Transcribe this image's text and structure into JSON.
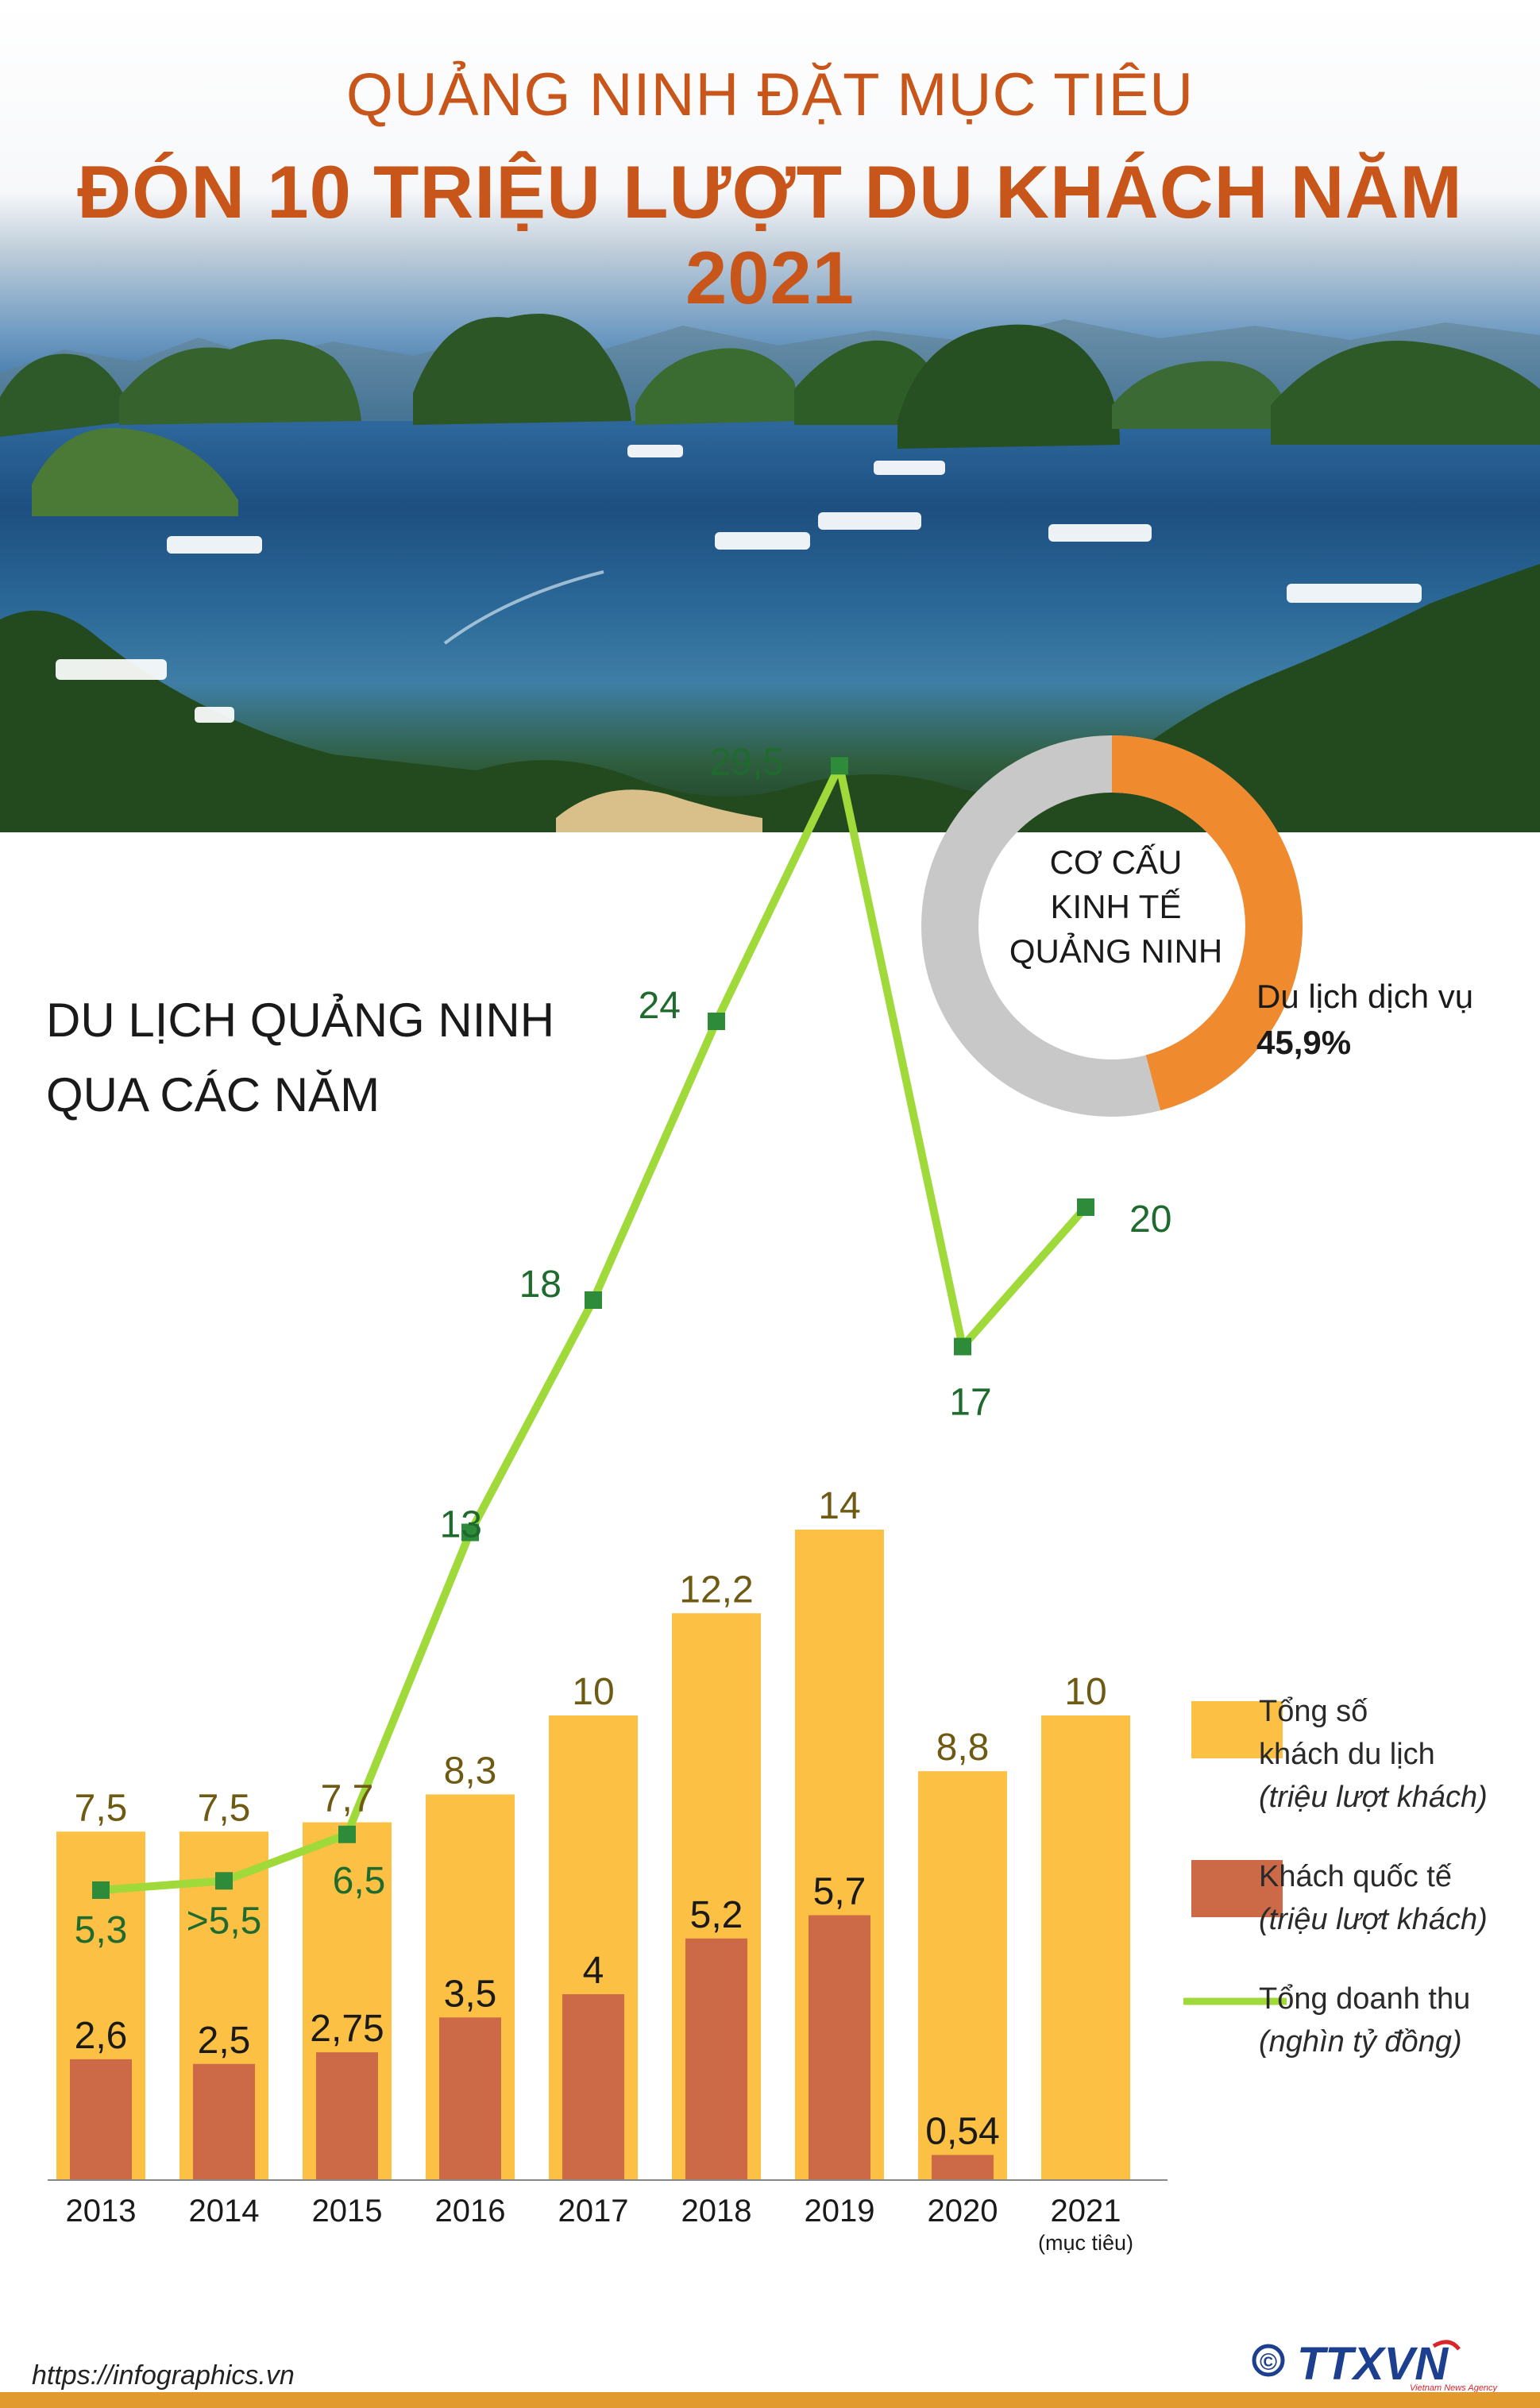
{
  "header": {
    "title_line1": "QUẢNG NINH ĐẶT MỤC TIÊU",
    "title_line2": "ĐÓN 10 TRIỆU LƯỢT DU KHÁCH NĂM 2021"
  },
  "section_title": {
    "line1": "DU LỊCH QUẢNG NINH",
    "line2": "QUA CÁC NĂM"
  },
  "donut": {
    "center_line1": "CƠ CẤU",
    "center_line2": "KINH TẾ",
    "center_line3": "QUẢNG NINH",
    "segment_label": "Du lịch dịch vụ",
    "segment_value": "45,9%",
    "percent": 45.9,
    "colors": {
      "segment": "#f08a2f",
      "rest": "#c8c8c8"
    }
  },
  "legend": {
    "total_line1": "Tổng số",
    "total_line2": "khách du lịch",
    "total_unit": "(triệu lượt khách)",
    "intl_line1": "Khách quốc tế",
    "intl_unit": "(triệu lượt khách)",
    "revenue_line1": "Tổng doanh thu",
    "revenue_unit": "(nghìn tỷ đồng)"
  },
  "chart_data": {
    "type": "bar",
    "categories": [
      "2013",
      "2014",
      "2015",
      "2016",
      "2017",
      "2018",
      "2019",
      "2020",
      "2021"
    ],
    "category_note": {
      "2021": "(mục tiêu)"
    },
    "series": [
      {
        "name": "Tổng số khách du lịch",
        "type": "bar",
        "values": [
          7.5,
          7.5,
          7.7,
          8.3,
          10,
          12.2,
          14,
          8.8,
          10
        ],
        "labels": [
          "7,5",
          "7,5",
          "7,7",
          "8,3",
          "10",
          "12,2",
          "14",
          "8,8",
          "10"
        ],
        "color": "#fbc044"
      },
      {
        "name": "Khách quốc tế",
        "type": "bar",
        "values": [
          2.6,
          2.5,
          2.75,
          3.5,
          4,
          5.2,
          5.7,
          0.54,
          null
        ],
        "labels": [
          "2,6",
          "2,5",
          "2,75",
          "3,5",
          "4",
          "5,2",
          "5,7",
          "0,54",
          ""
        ],
        "color": "#cc6a47"
      },
      {
        "name": "Tổng doanh thu",
        "type": "line",
        "values": [
          5.3,
          5.5,
          6.5,
          13,
          18,
          24,
          29.5,
          17,
          20
        ],
        "labels": [
          "5,3",
          ">5,5",
          "6,5",
          "13",
          "18",
          "24",
          "29,5",
          "17",
          "20"
        ],
        "color": "#9fd93a",
        "marker_color": "#2e8b3a",
        "label_color": "#1f6b2e"
      }
    ],
    "bar_label_color": "#6e5a12",
    "intl_label_color": "#1a1a1a"
  },
  "footer": {
    "url": "https://infographics.vn",
    "logo_text": "TTXVN",
    "copyright": "©",
    "logo_sub": "Vietnam News Agency"
  }
}
